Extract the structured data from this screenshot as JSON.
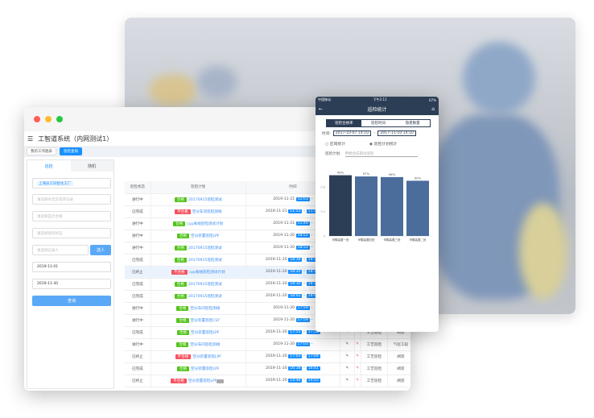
{
  "window": {
    "title": "工智道系统（内网测试1）",
    "tabs": [
      "我的工作图表",
      "巡检查询"
    ]
  },
  "left_panel": {
    "tabs": [
      "巡检",
      "随机"
    ],
    "factory_tag": "上海异工同智化工厂",
    "placeholders": [
      "请选择有无异常项记录",
      "请选择是否合格",
      "请选择巡检状态",
      "请选择记录人"
    ],
    "select_button": "选人",
    "date_from": "2019-11-01",
    "date_to": "2019-11-30",
    "query_button": "查询"
  },
  "table": {
    "headers": [
      "巡检状态",
      "巡检计划",
      "时间",
      "填写"
    ],
    "rows": [
      {
        "status": "进行中",
        "result": "合格",
        "plan": "20170915巡检测试",
        "date": "2019-11-21",
        "start": "12:03",
        "end": "",
        "type": "",
        "area": ""
      },
      {
        "status": "已完成",
        "result": "不合格",
        "plan": "空分车间巡检测线",
        "date": "2019-11-21",
        "start": "11:53",
        "end": "11:58",
        "type": "",
        "area": ""
      },
      {
        "status": "进行中",
        "result": "合格",
        "plan": "cyp离线巡检测试计划",
        "date": "2019-11-21",
        "start": "11:49",
        "end": "",
        "type": "",
        "area": ""
      },
      {
        "status": "进行中",
        "result": "合格",
        "plan": "空分装置巡检LPF",
        "date": "2019-11-20",
        "start": "18:52",
        "end": "",
        "type": "",
        "area": ""
      },
      {
        "status": "进行中",
        "result": "合格",
        "plan": "20170915巡检测试",
        "date": "2019-11-20",
        "start": "18:52",
        "end": "",
        "type": "",
        "area": ""
      },
      {
        "status": "已完成",
        "result": "合格",
        "plan": "20170915巡检测试",
        "date": "2019-11-20",
        "start": "18:38",
        "end": "18:39",
        "type": "",
        "area": ""
      },
      {
        "status": "已终止",
        "result": "不合格",
        "plan": "cyp离线巡检测试计划",
        "date": "2019-11-20",
        "start": "18:35",
        "end": "18:37",
        "type": "",
        "area": ""
      },
      {
        "status": "已完成",
        "result": "合格",
        "plan": "20170915巡检测试",
        "date": "2019-11-20",
        "start": "18:30",
        "end": "18:31",
        "type": "",
        "area": ""
      },
      {
        "status": "已完成",
        "result": "合格",
        "plan": "20170915巡检测试",
        "date": "2019-11-20",
        "start": "18:02",
        "end": "18:04",
        "type": "",
        "area": ""
      },
      {
        "status": "进行中",
        "result": "合格",
        "plan": "空分车间巡检测线",
        "date": "2019-11-20",
        "start": "17:59",
        "end": "",
        "type": "",
        "area": ""
      },
      {
        "status": "进行中",
        "result": "合格",
        "plan": "空分装置巡检CSY",
        "date": "2019-11-20",
        "start": "17:59",
        "end": "",
        "type": "",
        "area": ""
      },
      {
        "status": "已完成",
        "result": "合格",
        "plan": "空分装置巡检LPF",
        "date": "2019-11-20",
        "start": "17:55",
        "end": "17:56",
        "type": "工艺巡检",
        "area": "阀装"
      },
      {
        "status": "进行中",
        "result": "合格",
        "plan": "空分车间巡检测线",
        "date": "2019-11-20",
        "start": "17:03",
        "end": "",
        "type": "工艺巡检",
        "area": "气化工段"
      },
      {
        "status": "已终止",
        "result": "不合格",
        "plan": "空分装置巡检LPF",
        "date": "2019-11-20",
        "start": "17:03",
        "end": "17:04",
        "type": "工艺巡检",
        "area": "阀装"
      },
      {
        "status": "已完成",
        "result": "合格",
        "plan": "空分装置巡检LPF",
        "date": "2019-11-20",
        "start": "16:38",
        "end": "16:41",
        "type": "工艺巡检",
        "area": "阀装"
      },
      {
        "status": "已终止",
        "result": "不合格",
        "plan": "空分装置巡检LPF",
        "date": "2019-11-20",
        "start": "14:48",
        "end": "14:55",
        "type": "工艺巡检",
        "area": "阀装"
      }
    ]
  },
  "phone": {
    "carrier": "中国移动",
    "time": "下午2:11",
    "battery": "67%",
    "title": "巡检统计",
    "segments": [
      "巡检合格率",
      "巡检时间",
      "隐患数量"
    ],
    "time_label": "时间:",
    "from": "2017-10-07 14:10",
    "to": "2017-11-10 14:10",
    "radios": [
      "区域统计",
      "巡检计划统计"
    ],
    "plan_label": "巡检计划:",
    "plan_placeholder": "甲醇合成岗位巡检",
    "chart_data": {
      "type": "bar",
      "categories": [
        "甲醇装置一班",
        "甲醇装置四班",
        "甲醇装置三班",
        "甲醇装置二班"
      ],
      "values": [
        0.99,
        0.97,
        0.96,
        0.9
      ],
      "labels": [
        "99%",
        "97%",
        "96%",
        "90%"
      ],
      "yticks": [
        "0",
        "0.4",
        "0.8"
      ],
      "ylim": [
        0,
        1.05
      ],
      "colors": [
        "#2c3e55",
        "#4a6d9c",
        "#4a6d9c",
        "#4a6d9c"
      ]
    }
  }
}
